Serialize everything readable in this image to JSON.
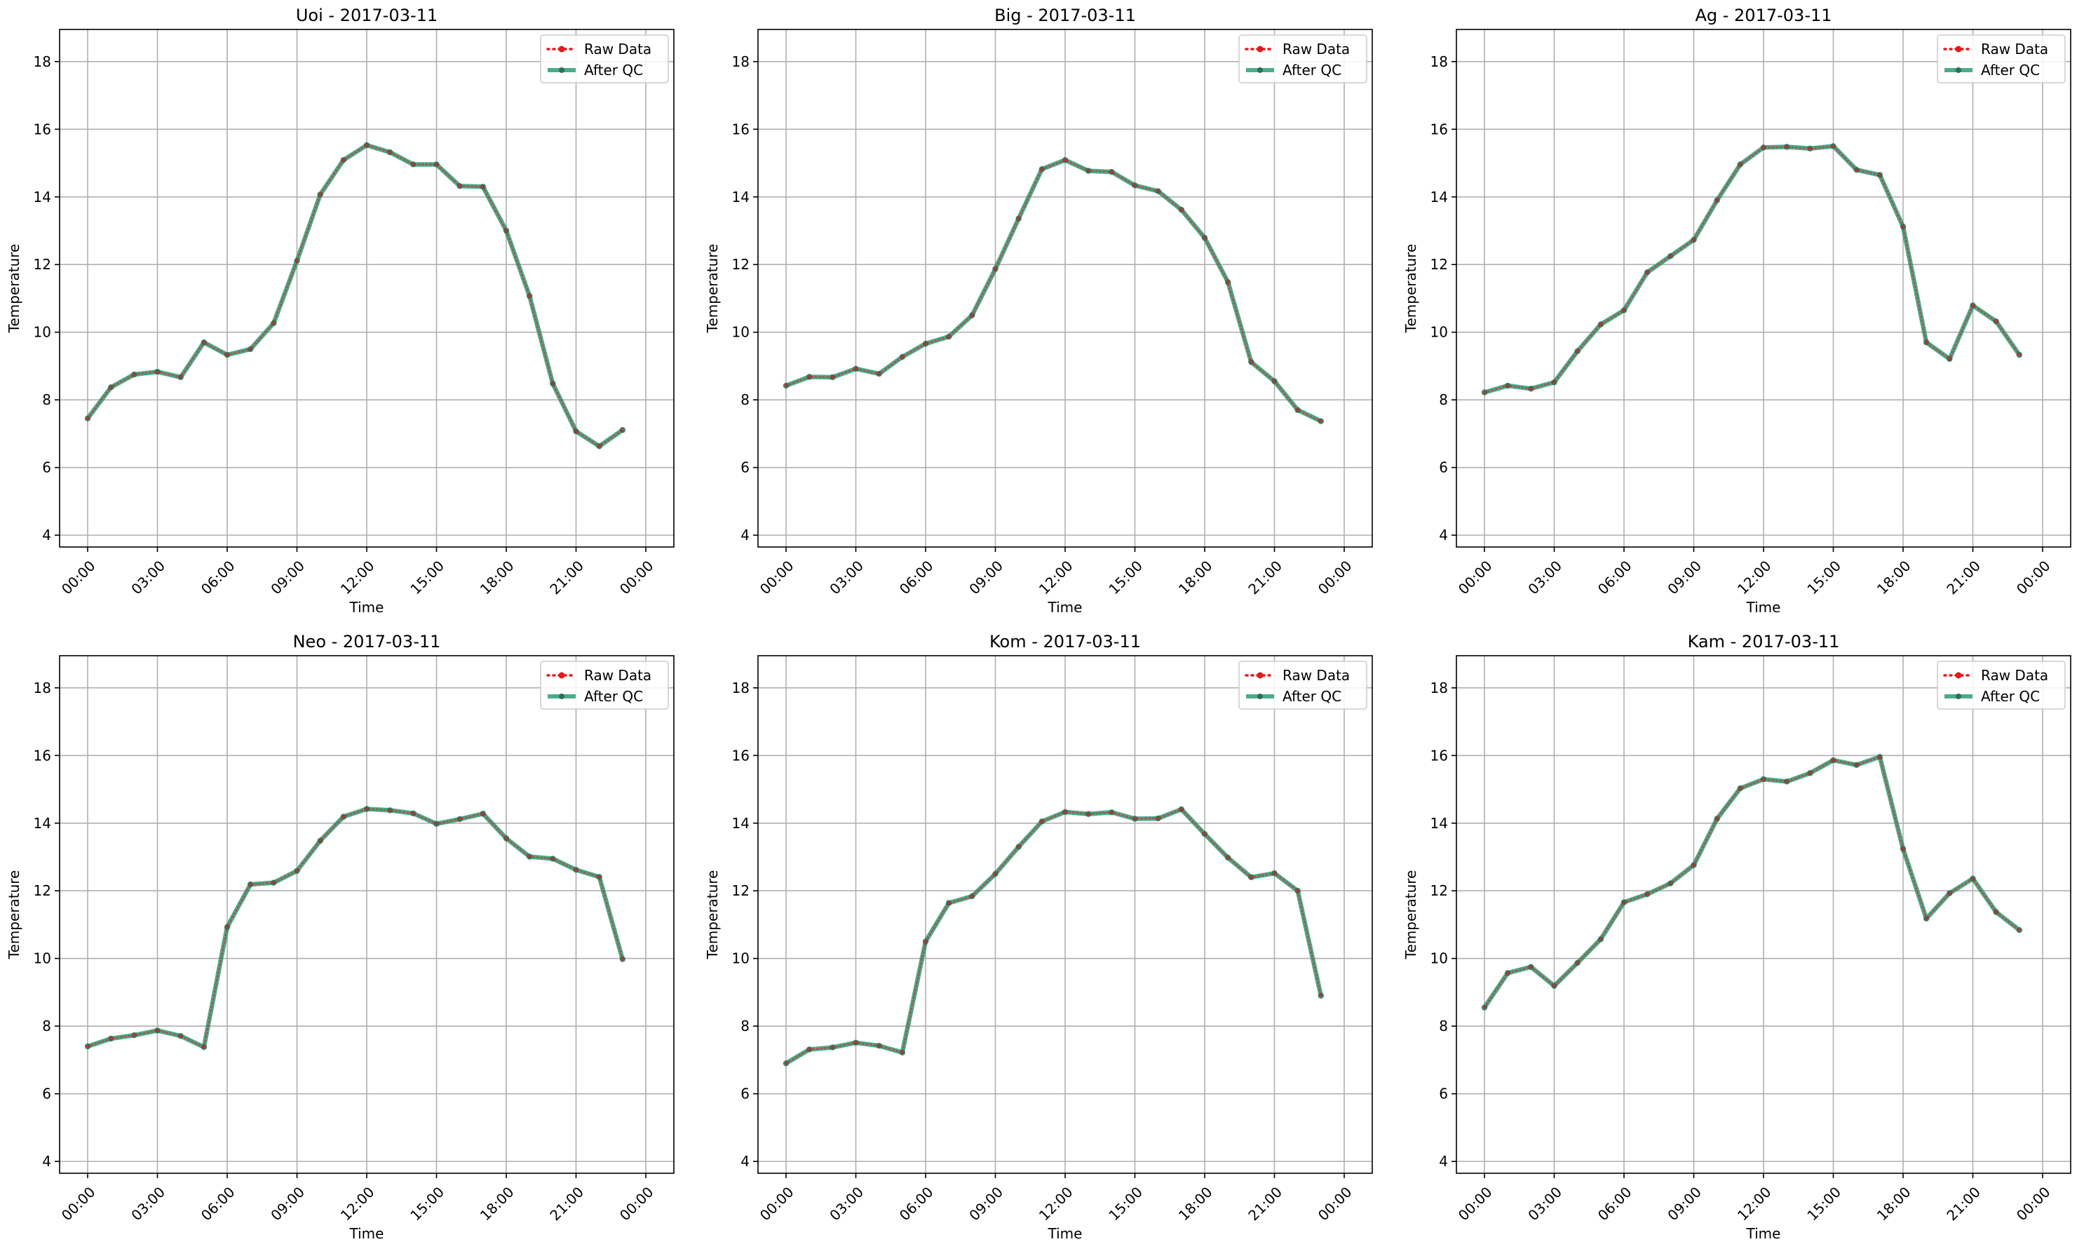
{
  "chart_data": [
    {
      "type": "line",
      "station": "Uoi",
      "date": "2017-03-11",
      "title": "Uoi - 2017-03-11",
      "xlabel": "Time",
      "ylabel": "Temperature",
      "x_tick_labels": [
        "00:00",
        "03:00",
        "06:00",
        "09:00",
        "12:00",
        "15:00",
        "18:00",
        "21:00",
        "00:00"
      ],
      "y_ticks": [
        4,
        6,
        8,
        10,
        12,
        14,
        16,
        18
      ],
      "ylim": [
        3.65,
        18.95
      ],
      "grid": true,
      "legend_position": "top-right",
      "hours": [
        0,
        1,
        2,
        3,
        4,
        5,
        6,
        7,
        8,
        9,
        10,
        11,
        12,
        13,
        14,
        15,
        16,
        17,
        18,
        19,
        20,
        21,
        22,
        23
      ],
      "series": [
        {
          "name": "Raw Data",
          "color": "#e31a1c",
          "style": "dotted-with-dots",
          "values": [
            7.45,
            8.37,
            8.75,
            8.83,
            8.67,
            9.7,
            9.33,
            9.5,
            10.27,
            12.11,
            14.07,
            15.09,
            15.53,
            15.32,
            14.96,
            14.96,
            14.32,
            14.3,
            13.0,
            11.07,
            8.48,
            7.07,
            6.63,
            7.11
          ]
        },
        {
          "name": "After QC",
          "color": "#2a9d78",
          "style": "solid-with-dots",
          "values": [
            7.45,
            8.37,
            8.75,
            8.83,
            8.67,
            9.7,
            9.33,
            9.5,
            10.27,
            12.11,
            14.07,
            15.09,
            15.53,
            15.32,
            14.96,
            14.96,
            14.32,
            14.3,
            13.0,
            11.07,
            8.48,
            7.07,
            6.63,
            7.11
          ]
        }
      ]
    },
    {
      "type": "line",
      "station": "Big",
      "date": "2017-03-11",
      "title": "Big - 2017-03-11",
      "xlabel": "Time",
      "ylabel": "Temperature",
      "x_tick_labels": [
        "00:00",
        "03:00",
        "06:00",
        "09:00",
        "12:00",
        "15:00",
        "18:00",
        "21:00",
        "00:00"
      ],
      "y_ticks": [
        4,
        6,
        8,
        10,
        12,
        14,
        16,
        18
      ],
      "ylim": [
        3.65,
        18.95
      ],
      "grid": true,
      "legend_position": "top-right",
      "hours": [
        0,
        1,
        2,
        3,
        4,
        5,
        6,
        7,
        8,
        9,
        10,
        11,
        12,
        13,
        14,
        15,
        16,
        17,
        18,
        19,
        20,
        21,
        22,
        23
      ],
      "series": [
        {
          "name": "Raw Data",
          "color": "#e31a1c",
          "style": "dotted-with-dots",
          "values": [
            8.42,
            8.68,
            8.67,
            8.92,
            8.77,
            9.27,
            9.66,
            9.87,
            10.5,
            11.87,
            13.36,
            14.82,
            15.09,
            14.77,
            14.74,
            14.34,
            14.17,
            13.62,
            12.79,
            11.48,
            9.12,
            8.55,
            7.7,
            7.37
          ]
        },
        {
          "name": "After QC",
          "color": "#2a9d78",
          "style": "solid-with-dots",
          "values": [
            8.42,
            8.68,
            8.67,
            8.92,
            8.77,
            9.27,
            9.66,
            9.87,
            10.5,
            11.87,
            13.36,
            14.82,
            15.09,
            14.77,
            14.74,
            14.34,
            14.17,
            13.62,
            12.79,
            11.48,
            9.12,
            8.55,
            7.7,
            7.37
          ]
        }
      ]
    },
    {
      "type": "line",
      "station": "Ag",
      "date": "2017-03-11",
      "title": "Ag - 2017-03-11",
      "xlabel": "Time",
      "ylabel": "Temperature",
      "x_tick_labels": [
        "00:00",
        "03:00",
        "06:00",
        "09:00",
        "12:00",
        "15:00",
        "18:00",
        "21:00",
        "00:00"
      ],
      "y_ticks": [
        4,
        6,
        8,
        10,
        12,
        14,
        16,
        18
      ],
      "ylim": [
        3.65,
        18.95
      ],
      "grid": true,
      "legend_position": "top-right",
      "hours": [
        0,
        1,
        2,
        3,
        4,
        5,
        6,
        7,
        8,
        9,
        10,
        11,
        12,
        13,
        14,
        15,
        16,
        17,
        18,
        19,
        20,
        21,
        22,
        23
      ],
      "series": [
        {
          "name": "Raw Data",
          "color": "#e31a1c",
          "style": "dotted-with-dots",
          "values": [
            8.22,
            8.42,
            8.33,
            8.52,
            9.44,
            10.23,
            10.65,
            11.77,
            12.25,
            12.73,
            13.9,
            14.96,
            15.46,
            15.48,
            15.43,
            15.5,
            14.8,
            14.65,
            13.12,
            9.7,
            9.21,
            10.79,
            10.32,
            9.33
          ]
        },
        {
          "name": "After QC",
          "color": "#2a9d78",
          "style": "solid-with-dots",
          "values": [
            8.22,
            8.42,
            8.33,
            8.52,
            9.44,
            10.23,
            10.65,
            11.77,
            12.25,
            12.73,
            13.9,
            14.96,
            15.46,
            15.48,
            15.43,
            15.5,
            14.8,
            14.65,
            13.12,
            9.7,
            9.21,
            10.79,
            10.32,
            9.33
          ]
        }
      ]
    },
    {
      "type": "line",
      "station": "Neo",
      "date": "2017-03-11",
      "title": "Neo - 2017-03-11",
      "xlabel": "Time",
      "ylabel": "Temperature",
      "x_tick_labels": [
        "00:00",
        "03:00",
        "06:00",
        "09:00",
        "12:00",
        "15:00",
        "18:00",
        "21:00",
        "00:00"
      ],
      "y_ticks": [
        4,
        6,
        8,
        10,
        12,
        14,
        16,
        18
      ],
      "ylim": [
        3.65,
        18.95
      ],
      "grid": true,
      "legend_position": "top-right",
      "hours": [
        0,
        1,
        2,
        3,
        4,
        5,
        6,
        7,
        8,
        9,
        10,
        11,
        12,
        13,
        14,
        15,
        16,
        17,
        18,
        19,
        20,
        21,
        22,
        23
      ],
      "series": [
        {
          "name": "Raw Data",
          "color": "#e31a1c",
          "style": "dotted-with-dots",
          "values": [
            7.4,
            7.63,
            7.73,
            7.87,
            7.71,
            7.38,
            10.93,
            12.19,
            12.24,
            12.59,
            13.48,
            14.19,
            14.42,
            14.38,
            14.29,
            13.98,
            14.12,
            14.28,
            13.55,
            13.01,
            12.95,
            12.62,
            12.41,
            9.98
          ]
        },
        {
          "name": "After QC",
          "color": "#2a9d78",
          "style": "solid-with-dots",
          "values": [
            7.4,
            7.63,
            7.73,
            7.87,
            7.71,
            7.38,
            10.93,
            12.19,
            12.24,
            12.59,
            13.48,
            14.19,
            14.42,
            14.38,
            14.29,
            13.98,
            14.12,
            14.28,
            13.55,
            13.01,
            12.95,
            12.62,
            12.41,
            9.98
          ]
        }
      ]
    },
    {
      "type": "line",
      "station": "Kom",
      "date": "2017-03-11",
      "title": "Kom - 2017-03-11",
      "xlabel": "Time",
      "ylabel": "Temperature",
      "x_tick_labels": [
        "00:00",
        "03:00",
        "06:00",
        "09:00",
        "12:00",
        "15:00",
        "18:00",
        "21:00",
        "00:00"
      ],
      "y_ticks": [
        4,
        6,
        8,
        10,
        12,
        14,
        16,
        18
      ],
      "ylim": [
        3.65,
        18.95
      ],
      "grid": true,
      "legend_position": "top-right",
      "hours": [
        0,
        1,
        2,
        3,
        4,
        5,
        6,
        7,
        8,
        9,
        10,
        11,
        12,
        13,
        14,
        15,
        16,
        17,
        18,
        19,
        20,
        21,
        22,
        23
      ],
      "series": [
        {
          "name": "Raw Data",
          "color": "#e31a1c",
          "style": "dotted-with-dots",
          "values": [
            6.9,
            7.31,
            7.37,
            7.51,
            7.42,
            7.22,
            10.5,
            11.64,
            11.84,
            12.5,
            13.3,
            14.05,
            14.33,
            14.27,
            14.32,
            14.13,
            14.14,
            14.41,
            13.68,
            12.98,
            12.4,
            12.52,
            12.0,
            8.9
          ]
        },
        {
          "name": "After QC",
          "color": "#2a9d78",
          "style": "solid-with-dots",
          "values": [
            6.9,
            7.31,
            7.37,
            7.51,
            7.42,
            7.22,
            10.5,
            11.64,
            11.84,
            12.5,
            13.3,
            14.05,
            14.33,
            14.27,
            14.32,
            14.13,
            14.14,
            14.41,
            13.68,
            12.98,
            12.4,
            12.52,
            12.0,
            8.9
          ]
        }
      ]
    },
    {
      "type": "line",
      "station": "Kam",
      "date": "2017-03-11",
      "title": "Kam - 2017-03-11",
      "xlabel": "Time",
      "ylabel": "Temperature",
      "x_tick_labels": [
        "00:00",
        "03:00",
        "06:00",
        "09:00",
        "12:00",
        "15:00",
        "18:00",
        "21:00",
        "00:00"
      ],
      "y_ticks": [
        4,
        6,
        8,
        10,
        12,
        14,
        16,
        18
      ],
      "ylim": [
        3.65,
        18.95
      ],
      "grid": true,
      "legend_position": "top-right",
      "hours": [
        0,
        1,
        2,
        3,
        4,
        5,
        6,
        7,
        8,
        9,
        10,
        11,
        12,
        13,
        14,
        15,
        16,
        17,
        18,
        19,
        20,
        21,
        22,
        23
      ],
      "series": [
        {
          "name": "Raw Data",
          "color": "#e31a1c",
          "style": "dotted-with-dots",
          "values": [
            8.55,
            9.57,
            9.75,
            9.19,
            9.87,
            10.57,
            11.66,
            11.9,
            12.22,
            12.76,
            14.13,
            15.03,
            15.3,
            15.23,
            15.48,
            15.86,
            15.72,
            15.96,
            13.24,
            11.18,
            11.93,
            12.36,
            11.37,
            10.84
          ]
        },
        {
          "name": "After QC",
          "color": "#2a9d78",
          "style": "solid-with-dots",
          "values": [
            8.55,
            9.57,
            9.75,
            9.19,
            9.87,
            10.57,
            11.66,
            11.9,
            12.22,
            12.76,
            14.13,
            15.03,
            15.3,
            15.23,
            15.48,
            15.86,
            15.72,
            15.96,
            13.24,
            11.18,
            11.93,
            12.36,
            11.37,
            10.84
          ]
        }
      ]
    }
  ]
}
